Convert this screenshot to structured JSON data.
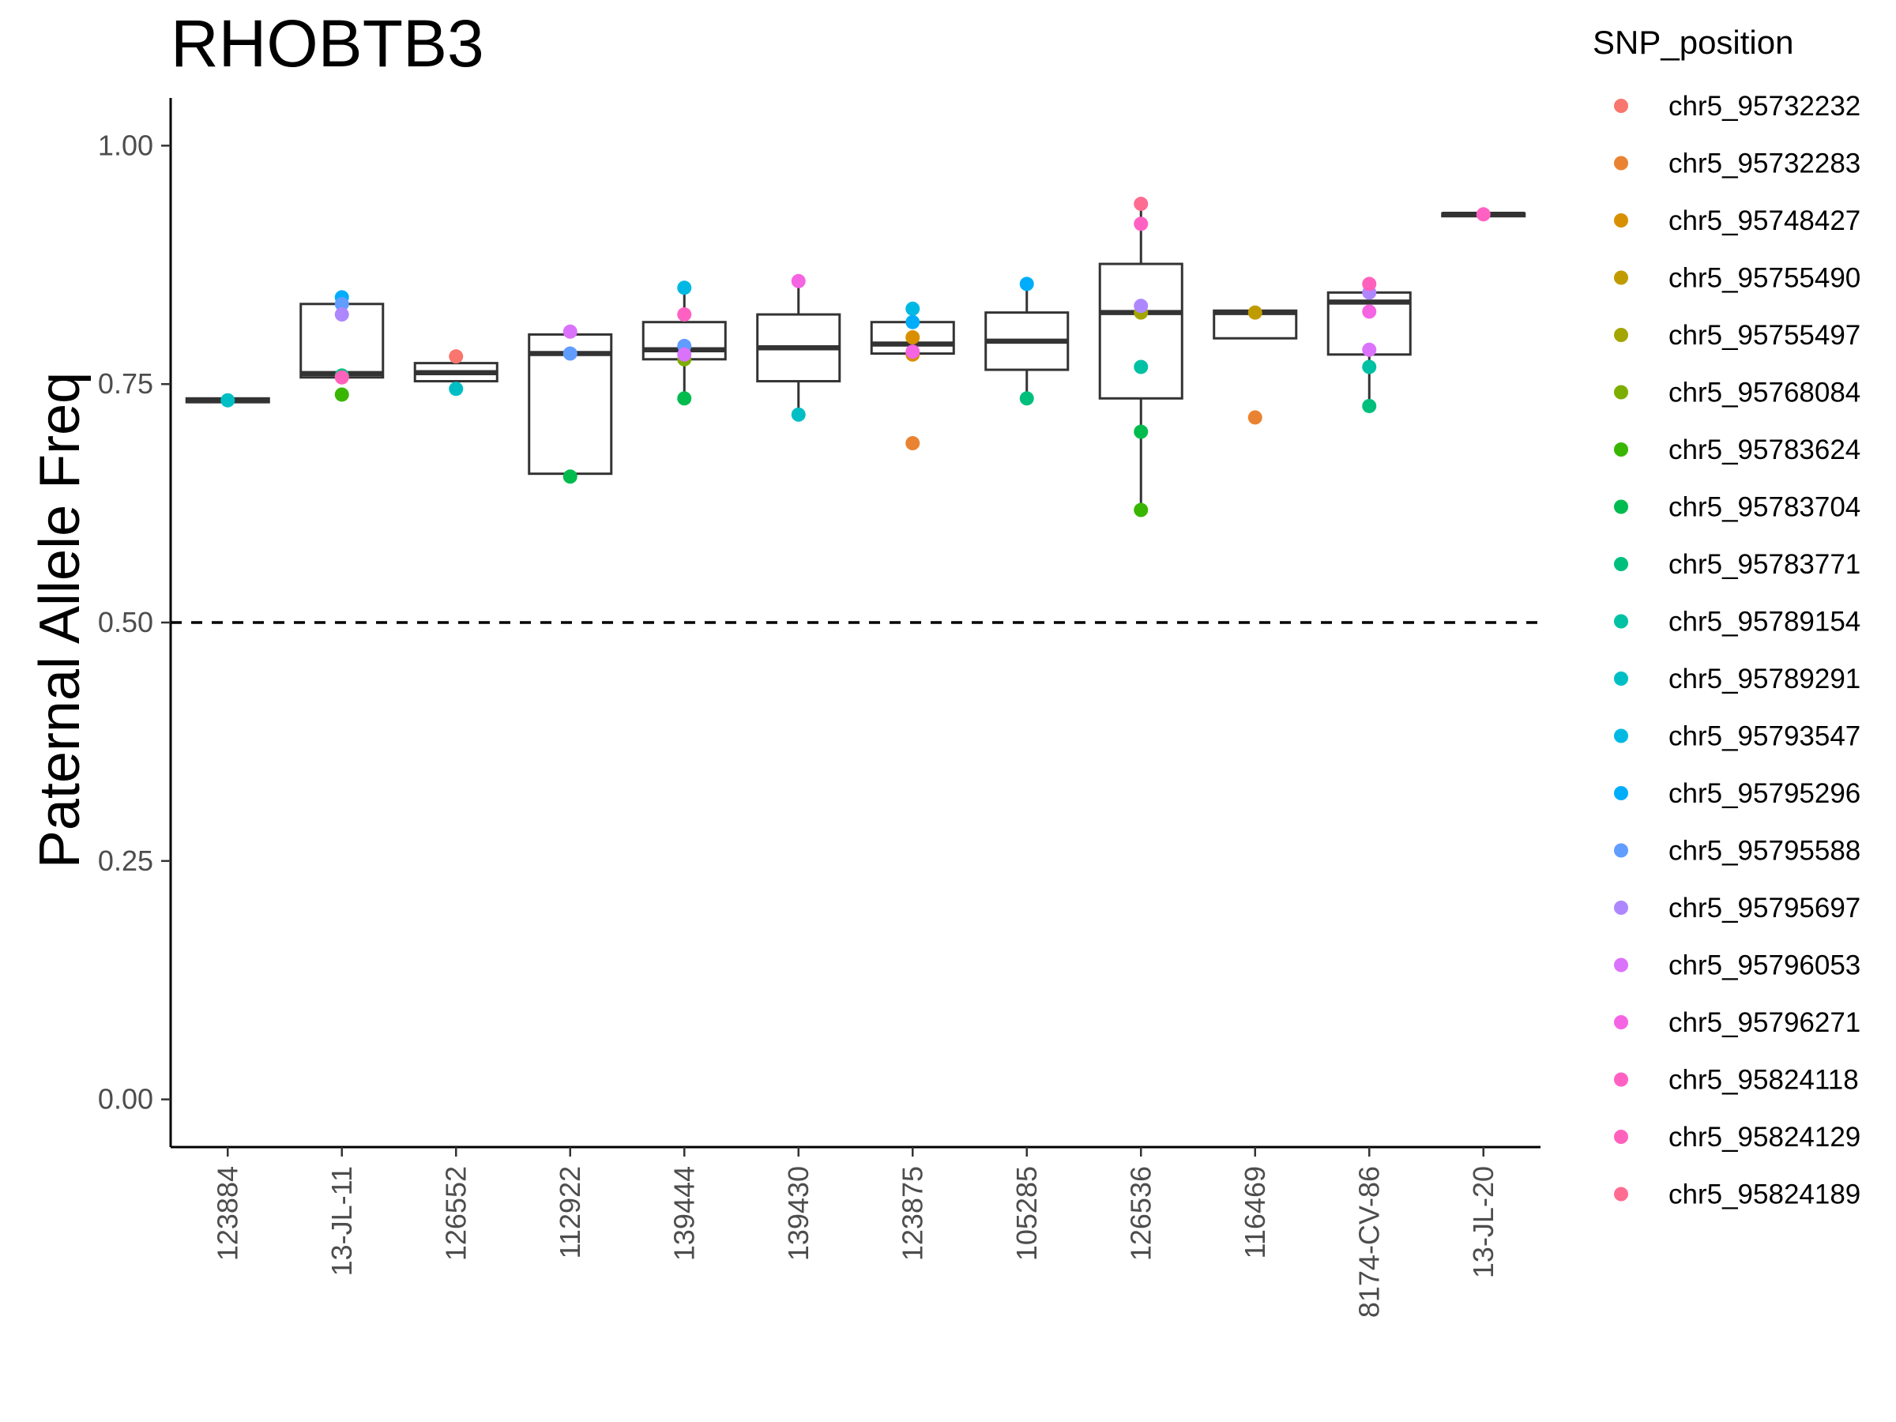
{
  "chart_data": {
    "type": "box",
    "title": "RHOBTB3",
    "ylabel": "Paternal Allele Freq",
    "xlabel": "",
    "ylim": [
      -0.05,
      1.05
    ],
    "yticks": [
      0.0,
      0.25,
      0.5,
      0.75,
      1.0
    ],
    "ytick_labels": [
      "0.00",
      "0.25",
      "0.50",
      "0.75",
      "1.00"
    ],
    "reference_line": {
      "y": 0.5,
      "style": "dashed"
    },
    "grid": false,
    "legend": {
      "title": "SNP_position",
      "placement": "right"
    },
    "categories": [
      "123884",
      "13-JL-11",
      "126552",
      "112922",
      "139444",
      "139430",
      "123875",
      "105285",
      "126536",
      "116469",
      "8174-CV-86",
      "13-JL-20"
    ],
    "boxes": [
      {
        "category": "123884",
        "q1": 0.731,
        "median": 0.733,
        "q3": 0.735,
        "whisker_low": 0.731,
        "whisker_high": 0.735
      },
      {
        "category": "13-JL-11",
        "q1": 0.757,
        "median": 0.761,
        "q3": 0.834,
        "whisker_low": 0.757,
        "whisker_high": 0.834
      },
      {
        "category": "126552",
        "q1": 0.753,
        "median": 0.762,
        "q3": 0.772,
        "whisker_low": 0.753,
        "whisker_high": 0.772
      },
      {
        "category": "112922",
        "q1": 0.656,
        "median": 0.782,
        "q3": 0.802,
        "whisker_low": 0.656,
        "whisker_high": 0.802
      },
      {
        "category": "139444",
        "q1": 0.776,
        "median": 0.786,
        "q3": 0.815,
        "whisker_low": 0.735,
        "whisker_high": 0.851
      },
      {
        "category": "139430",
        "q1": 0.753,
        "median": 0.788,
        "q3": 0.823,
        "whisker_low": 0.718,
        "whisker_high": 0.858
      },
      {
        "category": "123875",
        "q1": 0.782,
        "median": 0.792,
        "q3": 0.815,
        "whisker_low": 0.782,
        "whisker_high": 0.815
      },
      {
        "category": "105285",
        "q1": 0.765,
        "median": 0.795,
        "q3": 0.825,
        "whisker_low": 0.735,
        "whisker_high": 0.855
      },
      {
        "category": "126536",
        "q1": 0.735,
        "median": 0.825,
        "q3": 0.876,
        "whisker_low": 0.618,
        "whisker_high": 0.939
      },
      {
        "category": "116469",
        "q1": 0.798,
        "median": 0.825,
        "q3": 0.827,
        "whisker_low": 0.798,
        "whisker_high": 0.827
      },
      {
        "category": "8174-CV-86",
        "q1": 0.781,
        "median": 0.836,
        "q3": 0.846,
        "whisker_low": 0.727,
        "whisker_high": 0.855
      },
      {
        "category": "13-JL-20",
        "q1": 0.926,
        "median": 0.928,
        "q3": 0.929,
        "whisker_low": 0.926,
        "whisker_high": 0.929
      }
    ],
    "series": [
      {
        "name": "chr5_95732232",
        "color": "#F8766D",
        "points": [
          [
            "126552",
            0.779
          ]
        ]
      },
      {
        "name": "chr5_95732283",
        "color": "#EA8331",
        "points": [
          [
            "123875",
            0.688
          ],
          [
            "116469",
            0.715
          ]
        ]
      },
      {
        "name": "chr5_95748427",
        "color": "#D89000",
        "points": [
          [
            "123875",
            0.799
          ],
          [
            "123875",
            0.781
          ]
        ]
      },
      {
        "name": "chr5_95755490",
        "color": "#C09B00",
        "points": [
          [
            "116469",
            0.825
          ]
        ]
      },
      {
        "name": "chr5_95755497",
        "color": "#A3A500",
        "points": [
          [
            "126536",
            0.825
          ]
        ]
      },
      {
        "name": "chr5_95768084",
        "color": "#7CAE00",
        "points": [
          [
            "139444",
            0.776
          ]
        ]
      },
      {
        "name": "chr5_95783624",
        "color": "#39B600",
        "points": [
          [
            "13-JL-11",
            0.739
          ],
          [
            "126536",
            0.618
          ]
        ]
      },
      {
        "name": "chr5_95783704",
        "color": "#00BB4E",
        "points": [
          [
            "112922",
            0.653
          ],
          [
            "139444",
            0.735
          ],
          [
            "126536",
            0.7
          ]
        ]
      },
      {
        "name": "chr5_95783771",
        "color": "#00BF7D",
        "points": [
          [
            "13-JL-11",
            0.759
          ],
          [
            "105285",
            0.735
          ],
          [
            "8174-CV-86",
            0.727
          ]
        ]
      },
      {
        "name": "chr5_95789154",
        "color": "#00C1A3",
        "points": [
          [
            "126536",
            0.768
          ],
          [
            "8174-CV-86",
            0.768
          ]
        ]
      },
      {
        "name": "chr5_95789291",
        "color": "#00BFC4",
        "points": [
          [
            "123884",
            0.733
          ],
          [
            "126552",
            0.745
          ],
          [
            "139430",
            0.718
          ]
        ]
      },
      {
        "name": "chr5_95793547",
        "color": "#00B9E3",
        "points": [
          [
            "139444",
            0.851
          ],
          [
            "123875",
            0.829
          ]
        ]
      },
      {
        "name": "chr5_95795296",
        "color": "#00ADFA",
        "points": [
          [
            "13-JL-11",
            0.841
          ],
          [
            "105285",
            0.855
          ],
          [
            "123875",
            0.815
          ]
        ]
      },
      {
        "name": "chr5_95795588",
        "color": "#619CFF",
        "points": [
          [
            "13-JL-11",
            0.834
          ],
          [
            "112922",
            0.782
          ],
          [
            "139444",
            0.79
          ]
        ]
      },
      {
        "name": "chr5_95795697",
        "color": "#AE87FF",
        "points": [
          [
            "13-JL-11",
            0.823
          ],
          [
            "126536",
            0.832
          ],
          [
            "8174-CV-86",
            0.846
          ]
        ]
      },
      {
        "name": "chr5_95796053",
        "color": "#DB72FB",
        "points": [
          [
            "112922",
            0.805
          ],
          [
            "139444",
            0.781
          ],
          [
            "8174-CV-86",
            0.786
          ]
        ]
      },
      {
        "name": "chr5_95796271",
        "color": "#F564E3",
        "points": [
          [
            "139430",
            0.858
          ],
          [
            "8174-CV-86",
            0.826
          ],
          [
            "123875",
            0.784
          ]
        ]
      },
      {
        "name": "chr5_95824118",
        "color": "#FF61C3",
        "points": [
          [
            "13-JL-20",
            0.928
          ],
          [
            "126536",
            0.918
          ],
          [
            "139444",
            0.823
          ]
        ]
      },
      {
        "name": "chr5_95824129",
        "color": "#FF62BC",
        "points": [
          [
            "8174-CV-86",
            0.855
          ],
          [
            "13-JL-11",
            0.757
          ]
        ]
      },
      {
        "name": "chr5_95824189",
        "color": "#FF6C91",
        "points": [
          [
            "126536",
            0.939
          ]
        ]
      }
    ]
  }
}
